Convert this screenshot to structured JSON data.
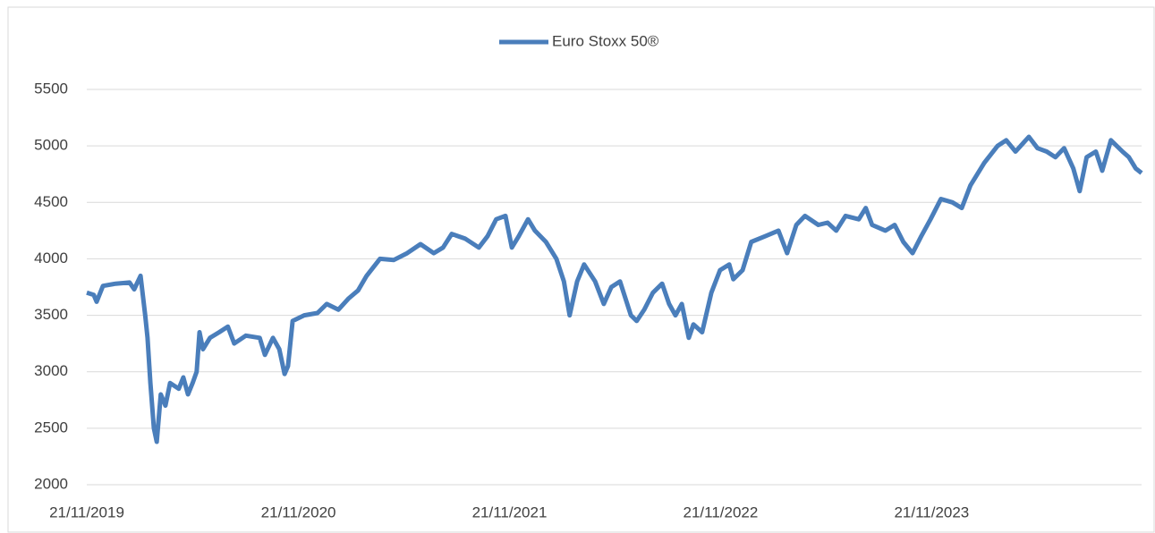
{
  "chart_data": {
    "type": "line",
    "series": [
      {
        "name": "Euro Stoxx 50®",
        "color": "#4a7ebb",
        "x": [
          "21/11/2019",
          "03/12/2019",
          "08/12/2019",
          "19/12/2019",
          "10/01/2020",
          "03/02/2020",
          "11/02/2020",
          "22/02/2020",
          "01/03/2020",
          "05/03/2020",
          "10/03/2020",
          "16/03/2020",
          "21/03/2020",
          "28/03/2020",
          "05/04/2020",
          "13/04/2020",
          "28/04/2020",
          "06/05/2020",
          "14/05/2020",
          "22/05/2020",
          "29/05/2020",
          "03/06/2020",
          "09/06/2020",
          "21/06/2020",
          "07/07/2020",
          "22/07/2020",
          "02/08/2020",
          "22/08/2020",
          "15/09/2020",
          "24/09/2020",
          "08/10/2020",
          "19/10/2020",
          "28/10/2020",
          "03/11/2020",
          "11/11/2020",
          "01/12/2020",
          "24/12/2020",
          "09/01/2021",
          "29/01/2021",
          "16/02/2021",
          "04/03/2021",
          "19/03/2021",
          "11/04/2021",
          "05/05/2021",
          "28/05/2021",
          "20/06/2021",
          "13/07/2021",
          "29/07/2021",
          "13/08/2021",
          "05/09/2021",
          "29/09/2021",
          "14/10/2021",
          "29/10/2021",
          "14/11/2021",
          "25/11/2021",
          "07/12/2021",
          "23/12/2021",
          "04/01/2022",
          "23/01/2022",
          "10/02/2022",
          "23/02/2022",
          "05/03/2022",
          "18/03/2022",
          "30/03/2022",
          "18/04/2022",
          "03/05/2022",
          "16/05/2022",
          "31/05/2022",
          "19/06/2022",
          "29/06/2022",
          "12/07/2022",
          "27/07/2022",
          "12/08/2022",
          "24/08/2022",
          "04/09/2022",
          "15/09/2022",
          "27/09/2022",
          "05/10/2022",
          "20/10/2022",
          "05/11/2022",
          "20/11/2022",
          "06/12/2022",
          "13/12/2022",
          "29/12/2022",
          "13/01/2023",
          "06/02/2023",
          "01/03/2023",
          "16/03/2023",
          "01/04/2023",
          "16/04/2023",
          "09/05/2023",
          "25/05/2023",
          "09/06/2023",
          "25/06/2023",
          "18/07/2023",
          "30/07/2023",
          "10/08/2023",
          "02/09/2023",
          "18/09/2023",
          "03/10/2023",
          "19/10/2023",
          "03/11/2023",
          "19/11/2023",
          "07/12/2023",
          "27/12/2023",
          "12/01/2024",
          "27/01/2024",
          "20/02/2024",
          "14/03/2024",
          "29/03/2024",
          "14/04/2024",
          "07/05/2024",
          "22/05/2024",
          "07/06/2024",
          "22/06/2024",
          "07/07/2024",
          "23/07/2024",
          "03/08/2024",
          "15/08/2024",
          "31/08/2024",
          "11/09/2024",
          "26/09/2024",
          "16/10/2024",
          "27/10/2024",
          "08/11/2024",
          "18/11/2024"
        ],
        "values": [
          3700,
          3680,
          3620,
          3760,
          3780,
          3790,
          3730,
          3850,
          3500,
          3300,
          2900,
          2500,
          2380,
          2800,
          2700,
          2900,
          2850,
          2950,
          2800,
          2900,
          3000,
          3350,
          3200,
          3300,
          3350,
          3400,
          3250,
          3320,
          3300,
          3150,
          3300,
          3200,
          2980,
          3050,
          3450,
          3500,
          3520,
          3600,
          3550,
          3650,
          3720,
          3850,
          4000,
          3990,
          4050,
          4130,
          4050,
          4100,
          4220,
          4180,
          4100,
          4200,
          4350,
          4380,
          4100,
          4200,
          4350,
          4250,
          4150,
          4000,
          3800,
          3500,
          3800,
          3950,
          3800,
          3600,
          3750,
          3800,
          3500,
          3450,
          3550,
          3700,
          3780,
          3600,
          3500,
          3600,
          3300,
          3420,
          3350,
          3700,
          3900,
          3950,
          3820,
          3900,
          4150,
          4200,
          4250,
          4050,
          4300,
          4380,
          4300,
          4320,
          4250,
          4380,
          4350,
          4450,
          4300,
          4250,
          4300,
          4150,
          4050,
          4200,
          4350,
          4530,
          4500,
          4450,
          4650,
          4850,
          5000,
          5050,
          4950,
          5080,
          4980,
          4950,
          4900,
          4980,
          4800,
          4600,
          4900,
          4950,
          4780,
          5050,
          4950,
          4900,
          4800,
          4760
        ]
      }
    ],
    "xlim": [
      "21/11/2019",
      "18/11/2024"
    ],
    "xticks": [
      "21/11/2019",
      "21/11/2020",
      "21/11/2021",
      "21/11/2022",
      "21/11/2023"
    ],
    "ylim": [
      2000,
      5500
    ],
    "yticks": [
      2000,
      2500,
      3000,
      3500,
      4000,
      4500,
      5000,
      5500
    ],
    "grid": true
  }
}
